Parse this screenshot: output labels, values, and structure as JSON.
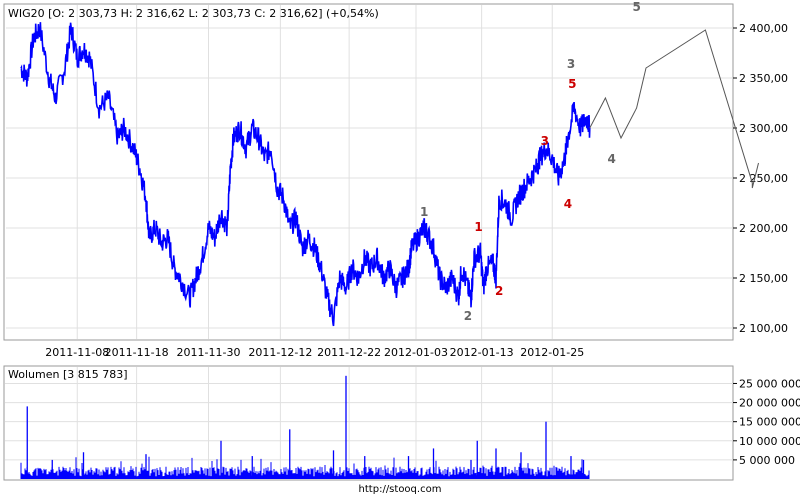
{
  "header": {
    "ticker_label": "WIG20 [O: 2 303,73  H: 2 316,62  L: 2 303,73  C: 2 316,62] (+0,54%)",
    "volume_label": "Wolumen [3 815 783]"
  },
  "footer": {
    "url": "http://stooq.com"
  },
  "colors": {
    "price_line": "#0000ff",
    "volume_bar": "#0000ff",
    "forecast_line": "#555555",
    "wave_red": "#cc0000",
    "wave_gray": "#666666",
    "grid": "#e0e0e0"
  },
  "chart_data": [
    {
      "type": "line",
      "title": "",
      "ylim": [
        2090,
        2420
      ],
      "yticks": [
        "2 100,00",
        "2 150,00",
        "2 200,00",
        "2 250,00",
        "2 300,00",
        "2 350,00",
        "2 400,00"
      ],
      "ytick_values": [
        2100,
        2150,
        2200,
        2250,
        2300,
        2350,
        2400
      ],
      "x_tick_labels": [
        "2011-11-08",
        "2011-11-18",
        "2011-11-30",
        "2011-12-12",
        "2011-12-22",
        "2012-01-03",
        "2012-01-13",
        "2012-01-25"
      ],
      "x_tick_index": [
        0.09,
        0.185,
        0.3,
        0.415,
        0.525,
        0.632,
        0.737,
        0.85
      ],
      "grid": true,
      "series": [
        {
          "points": [
            [
              0,
              2360
            ],
            [
              0.01,
              2350
            ],
            [
              0.02,
              2390
            ],
            [
              0.03,
              2400
            ],
            [
              0.045,
              2350
            ],
            [
              0.055,
              2330
            ],
            [
              0.07,
              2360
            ],
            [
              0.08,
              2400
            ],
            [
              0.09,
              2370
            ],
            [
              0.1,
              2380
            ],
            [
              0.11,
              2370
            ],
            [
              0.125,
              2320
            ],
            [
              0.14,
              2330
            ],
            [
              0.155,
              2290
            ],
            [
              0.165,
              2300
            ],
            [
              0.18,
              2280
            ],
            [
              0.19,
              2260
            ],
            [
              0.2,
              2230
            ],
            [
              0.205,
              2190
            ],
            [
              0.215,
              2200
            ],
            [
              0.225,
              2185
            ],
            [
              0.235,
              2190
            ],
            [
              0.245,
              2160
            ],
            [
              0.255,
              2150
            ],
            [
              0.27,
              2130
            ],
            [
              0.28,
              2150
            ],
            [
              0.29,
              2170
            ],
            [
              0.3,
              2200
            ],
            [
              0.31,
              2190
            ],
            [
              0.32,
              2215
            ],
            [
              0.33,
              2200
            ],
            [
              0.335,
              2260
            ],
            [
              0.34,
              2290
            ],
            [
              0.35,
              2300
            ],
            [
              0.36,
              2280
            ],
            [
              0.37,
              2300
            ],
            [
              0.38,
              2290
            ],
            [
              0.39,
              2270
            ],
            [
              0.4,
              2280
            ],
            [
              0.41,
              2240
            ],
            [
              0.42,
              2230
            ],
            [
              0.43,
              2200
            ],
            [
              0.44,
              2210
            ],
            [
              0.45,
              2180
            ],
            [
              0.46,
              2190
            ],
            [
              0.47,
              2180
            ],
            [
              0.48,
              2160
            ],
            [
              0.49,
              2130
            ],
            [
              0.5,
              2110
            ],
            [
              0.51,
              2150
            ],
            [
              0.52,
              2140
            ],
            [
              0.53,
              2160
            ],
            [
              0.54,
              2150
            ],
            [
              0.55,
              2170
            ],
            [
              0.56,
              2160
            ],
            [
              0.57,
              2170
            ],
            [
              0.58,
              2150
            ],
            [
              0.59,
              2160
            ],
            [
              0.6,
              2140
            ],
            [
              0.61,
              2150
            ],
            [
              0.62,
              2160
            ],
            [
              0.625,
              2180
            ],
            [
              0.635,
              2190
            ],
            [
              0.645,
              2200
            ],
            [
              0.65,
              2195
            ],
            [
              0.66,
              2180
            ],
            [
              0.67,
              2150
            ],
            [
              0.68,
              2140
            ],
            [
              0.69,
              2150
            ],
            [
              0.7,
              2130
            ],
            [
              0.705,
              2160
            ],
            [
              0.715,
              2140
            ],
            [
              0.72,
              2130
            ],
            [
              0.725,
              2170
            ],
            [
              0.735,
              2175
            ],
            [
              0.74,
              2140
            ],
            [
              0.745,
              2160
            ],
            [
              0.755,
              2165
            ],
            [
              0.76,
              2150
            ],
            [
              0.765,
              2230
            ],
            [
              0.775,
              2225
            ],
            [
              0.785,
              2210
            ],
            [
              0.795,
              2230
            ],
            [
              0.805,
              2240
            ],
            [
              0.815,
              2250
            ],
            [
              0.825,
              2260
            ],
            [
              0.83,
              2270
            ],
            [
              0.84,
              2280
            ],
            [
              0.85,
              2270
            ],
            [
              0.86,
              2250
            ],
            [
              0.87,
              2270
            ],
            [
              0.875,
              2290
            ],
            [
              0.885,
              2320
            ],
            [
              0.895,
              2300
            ],
            [
              0.905,
              2310
            ],
            [
              0.91,
              2300
            ]
          ]
        }
      ],
      "forecast": [
        [
          0.91,
          2300
        ],
        [
          0.935,
          2330
        ],
        [
          0.96,
          2290
        ],
        [
          0.985,
          2320
        ],
        [
          1.0,
          2360
        ],
        [
          1.05,
          2380
        ],
        [
          1.095,
          2398
        ],
        [
          1.17,
          2245
        ],
        [
          1.17,
          2240
        ],
        [
          1.18,
          2265
        ]
      ],
      "wave_labels": [
        {
          "text": "1",
          "x": 0.645,
          "y": 2212,
          "color": "gray"
        },
        {
          "text": "2",
          "x": 0.715,
          "y": 2108,
          "color": "gray"
        },
        {
          "text": "3",
          "x": 0.88,
          "y": 2360,
          "color": "gray"
        },
        {
          "text": "4",
          "x": 0.945,
          "y": 2265,
          "color": "gray"
        },
        {
          "text": "5",
          "x": 0.985,
          "y": 2417,
          "color": "gray"
        },
        {
          "text": "1",
          "x": 0.732,
          "y": 2197,
          "color": "red"
        },
        {
          "text": "2",
          "x": 0.765,
          "y": 2133,
          "color": "red"
        },
        {
          "text": "3",
          "x": 0.838,
          "y": 2283,
          "color": "red"
        },
        {
          "text": "4",
          "x": 0.875,
          "y": 2220,
          "color": "red"
        },
        {
          "text": "5",
          "x": 0.882,
          "y": 2340,
          "color": "red"
        }
      ]
    },
    {
      "type": "bar",
      "title": "Wolumen [3 815 783]",
      "ylim": [
        0,
        28000000
      ],
      "yticks": [
        "5 000 000",
        "10 000 000",
        "15 000 000",
        "20 000 000",
        "25 000 000"
      ],
      "ytick_values": [
        5000000,
        10000000,
        15000000,
        20000000,
        25000000
      ],
      "spikes": [
        [
          0.01,
          19000000
        ],
        [
          0.05,
          5000000
        ],
        [
          0.1,
          7000000
        ],
        [
          0.2,
          6500000
        ],
        [
          0.32,
          10000000
        ],
        [
          0.37,
          6000000
        ],
        [
          0.43,
          13000000
        ],
        [
          0.5,
          7500000
        ],
        [
          0.52,
          27000000
        ],
        [
          0.55,
          6000000
        ],
        [
          0.62,
          6000000
        ],
        [
          0.66,
          8000000
        ],
        [
          0.72,
          5000000
        ],
        [
          0.73,
          10000000
        ],
        [
          0.76,
          8000000
        ],
        [
          0.8,
          7000000
        ],
        [
          0.84,
          15000000
        ],
        [
          0.88,
          6000000
        ],
        [
          0.9,
          5000000
        ]
      ],
      "base_level": 1800000
    }
  ]
}
